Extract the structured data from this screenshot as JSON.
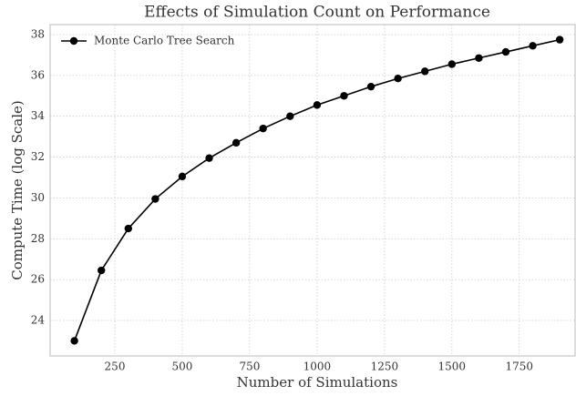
{
  "chart_data": {
    "type": "line",
    "title": "Effects of Simulation Count on Performance",
    "xlabel": "Number of Simulations",
    "ylabel": "Compute Time (log Scale)",
    "x": [
      100,
      200,
      300,
      400,
      500,
      600,
      700,
      800,
      900,
      1000,
      1100,
      1200,
      1300,
      1400,
      1500,
      1600,
      1700,
      1800,
      1900
    ],
    "series": [
      {
        "name": "Monte Carlo Tree Search",
        "color": "#000000",
        "values": [
          23.0,
          26.45,
          28.5,
          29.95,
          31.05,
          31.95,
          32.7,
          33.4,
          34.0,
          34.55,
          35.0,
          35.45,
          35.85,
          36.2,
          36.55,
          36.85,
          37.15,
          37.45,
          37.75
        ]
      }
    ],
    "xlim": [
      10,
      1957
    ],
    "xticks": [
      250,
      500,
      750,
      1000,
      1250,
      1500,
      1750
    ],
    "ylim": [
      22.26,
      38.49
    ],
    "yticks": [
      24,
      26,
      28,
      30,
      32,
      34,
      36,
      38
    ],
    "grid": true,
    "legend": "upper left"
  }
}
